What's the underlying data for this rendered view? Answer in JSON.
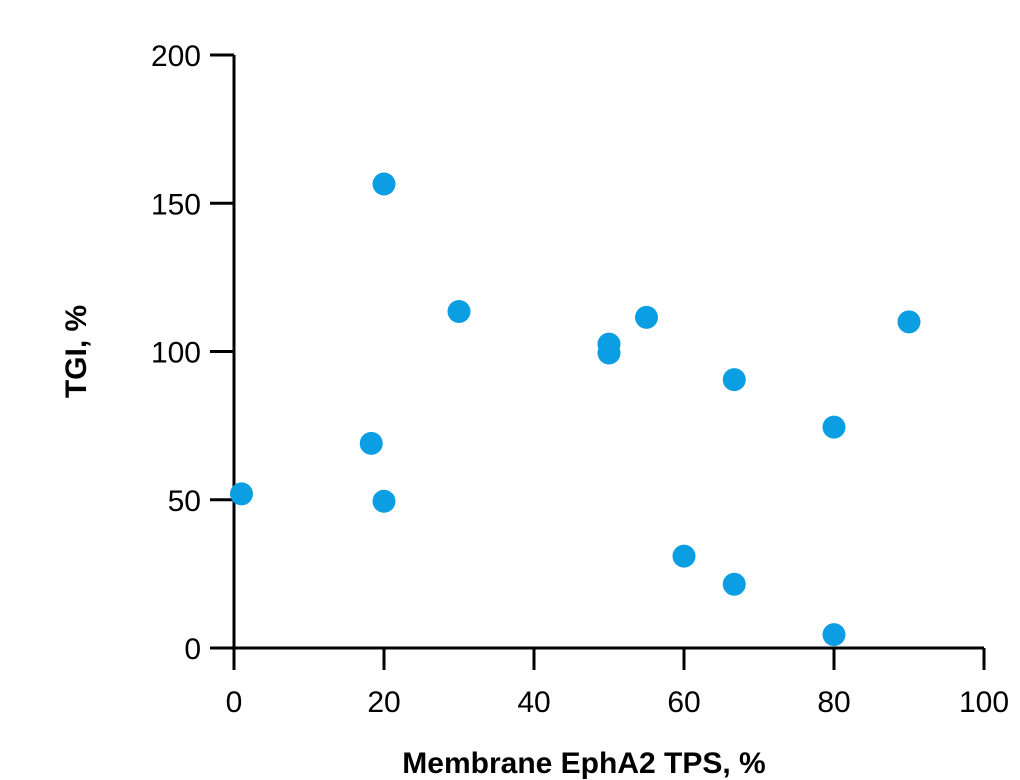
{
  "chart_data": {
    "type": "scatter",
    "title": "",
    "xlabel": "Membrane EphA2 TPS, %",
    "ylabel": "TGI, %",
    "xlim": [
      0,
      100
    ],
    "ylim": [
      0,
      200
    ],
    "x_ticks": [
      0,
      20,
      40,
      60,
      80,
      100
    ],
    "y_ticks": [
      0,
      50,
      100,
      150,
      200
    ],
    "grid": false,
    "legend": "none",
    "marker_color": "#0b9ee3",
    "points": [
      {
        "x": 1,
        "y": 52
      },
      {
        "x": 18.3,
        "y": 69
      },
      {
        "x": 20,
        "y": 49.5
      },
      {
        "x": 20,
        "y": 156.5
      },
      {
        "x": 30,
        "y": 113.5
      },
      {
        "x": 50,
        "y": 102.5
      },
      {
        "x": 50,
        "y": 99.5
      },
      {
        "x": 55,
        "y": 111.5
      },
      {
        "x": 60,
        "y": 31
      },
      {
        "x": 66.7,
        "y": 90.5
      },
      {
        "x": 66.7,
        "y": 21.5
      },
      {
        "x": 80,
        "y": 74.5
      },
      {
        "x": 80,
        "y": 4.5
      },
      {
        "x": 90,
        "y": 110
      }
    ]
  }
}
